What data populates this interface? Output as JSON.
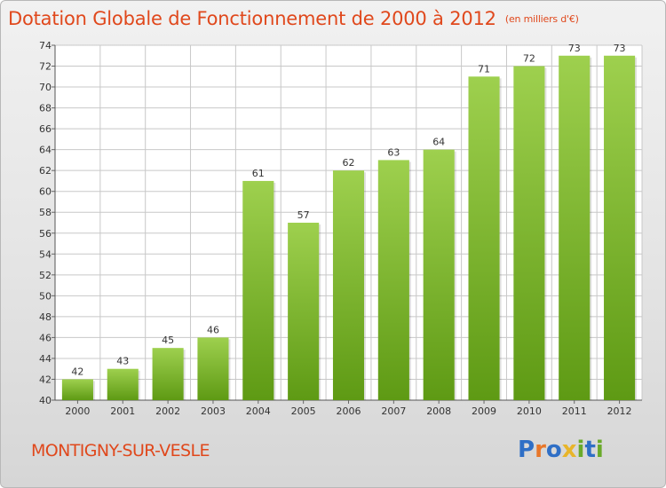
{
  "title": "Dotation Globale de Fonctionnement de 2000 à 2012",
  "subtitle": "(en milliers d'€)",
  "commune": "MONTIGNY-SUR-VESLE",
  "logo": {
    "text": "Proxiti",
    "letters": [
      {
        "ch": "P",
        "color": "#2f6fc6"
      },
      {
        "ch": "r",
        "color": "#e8772a"
      },
      {
        "ch": "o",
        "color": "#2f6fc6"
      },
      {
        "ch": "x",
        "color": "#e8b52a"
      },
      {
        "ch": "i",
        "color": "#6aaa2a"
      },
      {
        "ch": "t",
        "color": "#2f6fc6"
      },
      {
        "ch": "i",
        "color": "#6aaa2a"
      }
    ]
  },
  "colors": {
    "title": "#e0481c",
    "bar_top": "#9ed04e",
    "bar_bottom": "#5e9a14",
    "grid": "#c8c8c8"
  },
  "chart_data": {
    "type": "bar",
    "categories": [
      "2000",
      "2001",
      "2002",
      "2003",
      "2004",
      "2005",
      "2006",
      "2007",
      "2008",
      "2009",
      "2010",
      "2011",
      "2012"
    ],
    "values": [
      42,
      43,
      45,
      46,
      61,
      57,
      62,
      63,
      64,
      71,
      72,
      73,
      73
    ],
    "ylim": [
      40,
      74
    ],
    "yticks": [
      40,
      42,
      44,
      46,
      48,
      50,
      52,
      54,
      56,
      58,
      60,
      62,
      64,
      66,
      68,
      70,
      72,
      74
    ],
    "grid": true,
    "data_labels": true
  }
}
